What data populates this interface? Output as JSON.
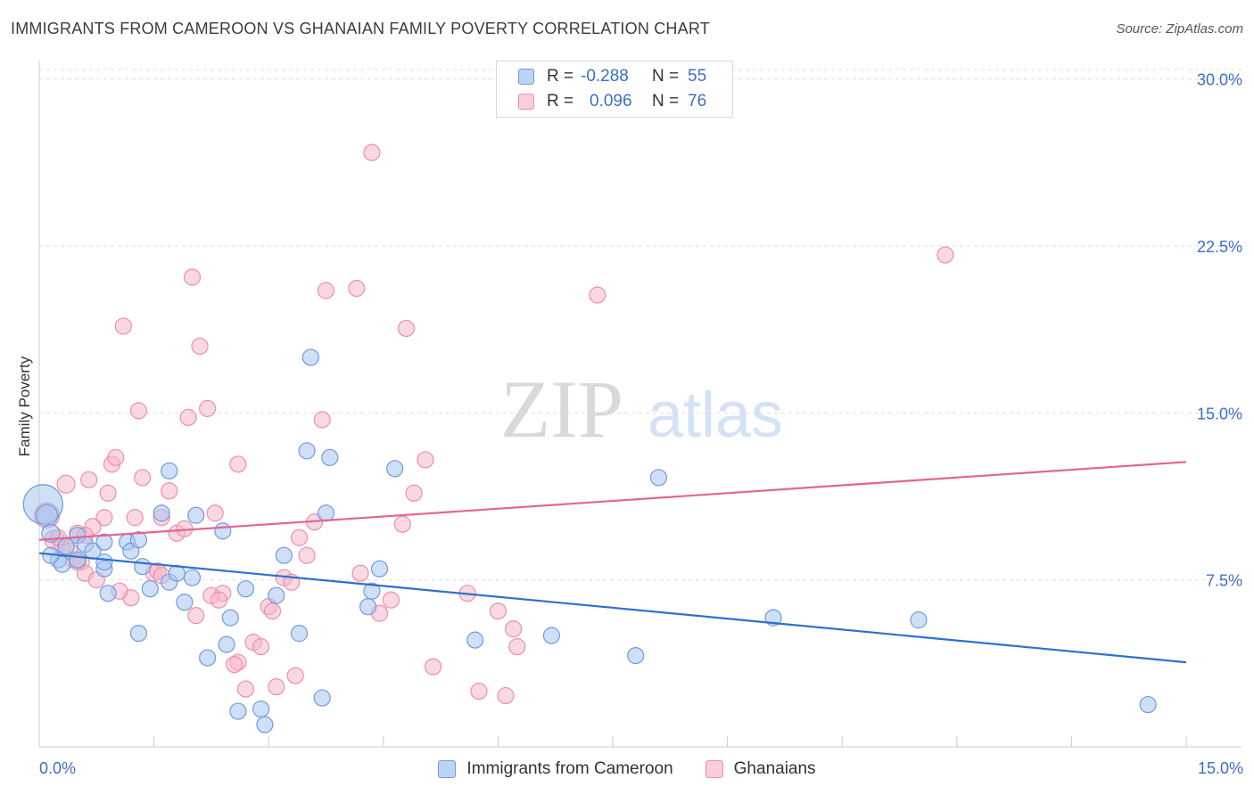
{
  "title": "IMMIGRANTS FROM CAMEROON VS GHANAIAN FAMILY POVERTY CORRELATION CHART",
  "source": "Source: ZipAtlas.com",
  "watermark": {
    "zip": "ZIP",
    "atlas": "atlas"
  },
  "legend_top": [
    {
      "r_label": "R =",
      "r_value": "-0.288",
      "n_label": "N =",
      "n_value": "55"
    },
    {
      "r_label": "R =",
      "r_value": "0.096",
      "n_label": "N =",
      "n_value": "76"
    }
  ],
  "colors": {
    "blue_fill": "#a8c4ee",
    "blue_stroke": "#6f9be0",
    "blue_line": "#2f6fd0",
    "pink_fill": "#f6b8ca",
    "pink_stroke": "#ec8fab",
    "pink_line": "#e2668f",
    "tick_text": "#3b6fc5",
    "grid": "#dddddd"
  },
  "chart_data": {
    "type": "scatter",
    "title": "IMMIGRANTS FROM CAMEROON VS GHANAIAN FAMILY POVERTY CORRELATION CHART",
    "xlabel": "",
    "ylabel": "Family Poverty",
    "xlim": [
      0,
      15
    ],
    "ylim": [
      0,
      30.75
    ],
    "x_tick_labels": [
      "0.0%",
      "15.0%"
    ],
    "y_ticks": [
      7.5,
      15.0,
      22.5,
      30.0
    ],
    "y_tick_labels": [
      "7.5%",
      "15.0%",
      "22.5%",
      "30.0%"
    ],
    "grid": true,
    "legend_position": "top-center",
    "series": [
      {
        "name": "Immigrants from Cameroon",
        "color": "#a8c4ee",
        "trend": {
          "x": [
            0,
            15
          ],
          "y": [
            8.7,
            3.8
          ]
        },
        "points": [
          {
            "x": 0.05,
            "y": 10.9,
            "s": 22
          },
          {
            "x": 0.1,
            "y": 10.4,
            "s": 12
          },
          {
            "x": 0.15,
            "y": 9.6,
            "s": 10
          },
          {
            "x": 0.25,
            "y": 8.4,
            "s": 9
          },
          {
            "x": 0.35,
            "y": 9.0,
            "s": 9
          },
          {
            "x": 0.5,
            "y": 9.5,
            "s": 9
          },
          {
            "x": 0.6,
            "y": 9.1,
            "s": 9
          },
          {
            "x": 0.3,
            "y": 8.2,
            "s": 9
          },
          {
            "x": 0.5,
            "y": 8.4,
            "s": 9
          },
          {
            "x": 0.7,
            "y": 8.8,
            "s": 9
          },
          {
            "x": 0.85,
            "y": 9.2,
            "s": 9
          },
          {
            "x": 0.85,
            "y": 8.0,
            "s": 9
          },
          {
            "x": 0.9,
            "y": 6.9,
            "s": 9
          },
          {
            "x": 0.85,
            "y": 8.3,
            "s": 9
          },
          {
            "x": 1.15,
            "y": 9.2,
            "s": 9
          },
          {
            "x": 1.2,
            "y": 8.8,
            "s": 9
          },
          {
            "x": 1.3,
            "y": 9.3,
            "s": 9
          },
          {
            "x": 1.35,
            "y": 8.1,
            "s": 9
          },
          {
            "x": 1.45,
            "y": 7.1,
            "s": 9
          },
          {
            "x": 1.6,
            "y": 10.5,
            "s": 9
          },
          {
            "x": 1.7,
            "y": 7.4,
            "s": 9
          },
          {
            "x": 1.8,
            "y": 7.8,
            "s": 9
          },
          {
            "x": 1.9,
            "y": 6.5,
            "s": 9
          },
          {
            "x": 2.0,
            "y": 7.6,
            "s": 9
          },
          {
            "x": 2.05,
            "y": 10.4,
            "s": 9
          },
          {
            "x": 2.2,
            "y": 4.0,
            "s": 9
          },
          {
            "x": 2.4,
            "y": 9.7,
            "s": 9
          },
          {
            "x": 2.5,
            "y": 5.8,
            "s": 9
          },
          {
            "x": 2.6,
            "y": 1.6,
            "s": 9
          },
          {
            "x": 2.7,
            "y": 7.1,
            "s": 9
          },
          {
            "x": 2.9,
            "y": 1.7,
            "s": 9
          },
          {
            "x": 2.95,
            "y": 1.0,
            "s": 9
          },
          {
            "x": 3.1,
            "y": 6.8,
            "s": 9
          },
          {
            "x": 3.2,
            "y": 8.6,
            "s": 9
          },
          {
            "x": 3.4,
            "y": 5.1,
            "s": 9
          },
          {
            "x": 3.55,
            "y": 17.5,
            "s": 9
          },
          {
            "x": 3.5,
            "y": 13.3,
            "s": 9
          },
          {
            "x": 3.75,
            "y": 10.5,
            "s": 9
          },
          {
            "x": 3.8,
            "y": 13.0,
            "s": 9
          },
          {
            "x": 3.7,
            "y": 2.2,
            "s": 9
          },
          {
            "x": 4.3,
            "y": 6.3,
            "s": 9
          },
          {
            "x": 4.35,
            "y": 7.0,
            "s": 9
          },
          {
            "x": 4.45,
            "y": 8.0,
            "s": 9
          },
          {
            "x": 4.65,
            "y": 12.5,
            "s": 9
          },
          {
            "x": 1.7,
            "y": 12.4,
            "s": 9
          },
          {
            "x": 1.3,
            "y": 5.1,
            "s": 9
          },
          {
            "x": 2.45,
            "y": 4.6,
            "s": 9
          },
          {
            "x": 5.7,
            "y": 4.8,
            "s": 9
          },
          {
            "x": 6.7,
            "y": 5.0,
            "s": 9
          },
          {
            "x": 7.8,
            "y": 4.1,
            "s": 9
          },
          {
            "x": 8.1,
            "y": 12.1,
            "s": 9
          },
          {
            "x": 9.6,
            "y": 5.8,
            "s": 9
          },
          {
            "x": 11.5,
            "y": 5.7,
            "s": 9
          },
          {
            "x": 14.5,
            "y": 1.9,
            "s": 9
          },
          {
            "x": 0.15,
            "y": 8.6,
            "s": 9
          }
        ]
      },
      {
        "name": "Ghanaians",
        "color": "#f6b8ca",
        "trend": {
          "x": [
            0,
            15
          ],
          "y": [
            9.3,
            12.8
          ]
        },
        "points": [
          {
            "x": 0.1,
            "y": 10.4,
            "s": 14
          },
          {
            "x": 0.2,
            "y": 9.3,
            "s": 11
          },
          {
            "x": 0.3,
            "y": 9.0,
            "s": 9
          },
          {
            "x": 0.35,
            "y": 11.8,
            "s": 10
          },
          {
            "x": 0.45,
            "y": 8.4,
            "s": 9
          },
          {
            "x": 0.5,
            "y": 9.6,
            "s": 9
          },
          {
            "x": 0.55,
            "y": 8.3,
            "s": 9
          },
          {
            "x": 0.6,
            "y": 7.8,
            "s": 9
          },
          {
            "x": 0.65,
            "y": 12.0,
            "s": 9
          },
          {
            "x": 0.75,
            "y": 7.5,
            "s": 9
          },
          {
            "x": 0.85,
            "y": 10.3,
            "s": 9
          },
          {
            "x": 0.95,
            "y": 12.7,
            "s": 9
          },
          {
            "x": 0.9,
            "y": 11.4,
            "s": 9
          },
          {
            "x": 1.0,
            "y": 13.0,
            "s": 9
          },
          {
            "x": 1.1,
            "y": 18.9,
            "s": 9
          },
          {
            "x": 1.3,
            "y": 15.1,
            "s": 9
          },
          {
            "x": 1.35,
            "y": 12.1,
            "s": 9
          },
          {
            "x": 1.5,
            "y": 7.8,
            "s": 9
          },
          {
            "x": 1.6,
            "y": 10.3,
            "s": 9
          },
          {
            "x": 1.7,
            "y": 11.5,
            "s": 9
          },
          {
            "x": 1.8,
            "y": 9.6,
            "s": 9
          },
          {
            "x": 1.95,
            "y": 14.8,
            "s": 9
          },
          {
            "x": 2.0,
            "y": 21.1,
            "s": 9
          },
          {
            "x": 2.1,
            "y": 18.0,
            "s": 9
          },
          {
            "x": 2.2,
            "y": 15.2,
            "s": 9
          },
          {
            "x": 2.3,
            "y": 10.5,
            "s": 9
          },
          {
            "x": 2.4,
            "y": 6.9,
            "s": 9
          },
          {
            "x": 2.6,
            "y": 12.7,
            "s": 9
          },
          {
            "x": 2.6,
            "y": 3.8,
            "s": 9
          },
          {
            "x": 2.7,
            "y": 2.6,
            "s": 9
          },
          {
            "x": 2.8,
            "y": 4.7,
            "s": 9
          },
          {
            "x": 2.9,
            "y": 4.5,
            "s": 9
          },
          {
            "x": 3.0,
            "y": 6.3,
            "s": 9
          },
          {
            "x": 3.1,
            "y": 2.7,
            "s": 9
          },
          {
            "x": 3.2,
            "y": 7.6,
            "s": 9
          },
          {
            "x": 3.3,
            "y": 7.4,
            "s": 9
          },
          {
            "x": 3.35,
            "y": 3.2,
            "s": 9
          },
          {
            "x": 3.4,
            "y": 9.4,
            "s": 9
          },
          {
            "x": 3.5,
            "y": 8.6,
            "s": 9
          },
          {
            "x": 3.6,
            "y": 10.1,
            "s": 9
          },
          {
            "x": 3.7,
            "y": 14.7,
            "s": 9
          },
          {
            "x": 3.75,
            "y": 20.5,
            "s": 9
          },
          {
            "x": 4.15,
            "y": 20.6,
            "s": 9
          },
          {
            "x": 4.2,
            "y": 7.8,
            "s": 9
          },
          {
            "x": 4.35,
            "y": 26.7,
            "s": 9
          },
          {
            "x": 4.45,
            "y": 6.0,
            "s": 9
          },
          {
            "x": 4.6,
            "y": 6.6,
            "s": 9
          },
          {
            "x": 4.75,
            "y": 10.0,
            "s": 9
          },
          {
            "x": 4.8,
            "y": 18.8,
            "s": 9
          },
          {
            "x": 4.9,
            "y": 11.4,
            "s": 9
          },
          {
            "x": 5.05,
            "y": 12.9,
            "s": 9
          },
          {
            "x": 5.15,
            "y": 3.6,
            "s": 9
          },
          {
            "x": 5.6,
            "y": 6.9,
            "s": 9
          },
          {
            "x": 5.75,
            "y": 2.5,
            "s": 9
          },
          {
            "x": 6.0,
            "y": 6.1,
            "s": 9
          },
          {
            "x": 6.1,
            "y": 2.3,
            "s": 9
          },
          {
            "x": 6.2,
            "y": 5.3,
            "s": 9
          },
          {
            "x": 6.25,
            "y": 4.5,
            "s": 9
          },
          {
            "x": 7.3,
            "y": 20.3,
            "s": 9
          },
          {
            "x": 11.85,
            "y": 22.1,
            "s": 9
          },
          {
            "x": 0.4,
            "y": 8.8,
            "s": 9
          },
          {
            "x": 0.7,
            "y": 9.9,
            "s": 9
          },
          {
            "x": 1.2,
            "y": 6.7,
            "s": 9
          },
          {
            "x": 1.55,
            "y": 7.9,
            "s": 9
          },
          {
            "x": 1.9,
            "y": 9.8,
            "s": 9
          },
          {
            "x": 2.05,
            "y": 5.9,
            "s": 9
          },
          {
            "x": 2.25,
            "y": 6.8,
            "s": 9
          },
          {
            "x": 2.35,
            "y": 6.6,
            "s": 9
          },
          {
            "x": 2.55,
            "y": 3.7,
            "s": 9
          },
          {
            "x": 3.05,
            "y": 6.1,
            "s": 9
          },
          {
            "x": 1.05,
            "y": 7.0,
            "s": 9
          },
          {
            "x": 0.6,
            "y": 9.5,
            "s": 9
          },
          {
            "x": 1.25,
            "y": 10.3,
            "s": 9
          },
          {
            "x": 0.25,
            "y": 9.4,
            "s": 9
          },
          {
            "x": 1.6,
            "y": 7.7,
            "s": 9
          },
          {
            "x": 0.5,
            "y": 8.3,
            "s": 9
          }
        ]
      }
    ]
  }
}
